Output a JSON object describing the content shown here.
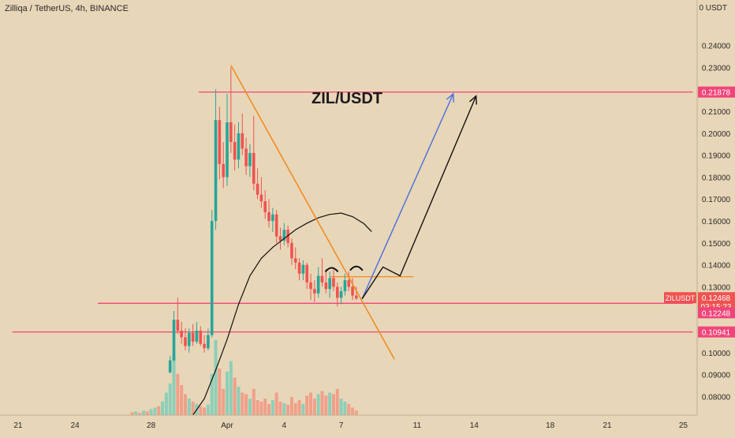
{
  "header": {
    "symbol_title": "Zilliqa / TetherUS, 4h, BINANCE",
    "unit": "0 USDT"
  },
  "annotation": {
    "text": "ZIL/USDT"
  },
  "chart_data": {
    "type": "candlestick",
    "title": "Zilliqa / TetherUS, 4h, BINANCE",
    "pair_label": "ZIL/USDT",
    "y_axis": {
      "unit": "USDT",
      "range": [
        0.0715,
        0.246
      ],
      "ticks": [
        0.08,
        0.09,
        0.1,
        0.11,
        0.12,
        0.13,
        0.14,
        0.15,
        0.16,
        0.17,
        0.18,
        0.19,
        0.2,
        0.21,
        0.22,
        0.23,
        0.24
      ],
      "tick_labels": [
        "0.08000",
        "0.09000",
        "0.10000",
        "0.11000",
        "0.12000",
        "0.13000",
        "0.14000",
        "0.15000",
        "0.16000",
        "0.17000",
        "0.18000",
        "0.19000",
        "0.20000",
        "0.21000",
        "0.22000",
        "0.23000",
        "0.24000"
      ]
    },
    "x_axis": {
      "tick_labels": [
        "21",
        "24",
        "28",
        "Apr",
        "4",
        "7",
        "11",
        "14",
        "18",
        "21",
        "25"
      ],
      "tick_days": [
        -11,
        -8,
        -4,
        0,
        3,
        6,
        10,
        13,
        17,
        20,
        24
      ]
    },
    "price_labels": [
      {
        "text": "0.21878",
        "value": 0.21878
      },
      {
        "text": "0.12468",
        "value": 0.12468,
        "tag": "ZILUSDT",
        "countdown": "03:15:23"
      },
      {
        "text": "0.12248",
        "value": 0.12248
      },
      {
        "text": "0.10941",
        "value": 0.10941
      }
    ],
    "horizontal_lines": [
      {
        "value": 0.21878,
        "from_day": -1.5,
        "to_day": 24.5,
        "color": "#f0457a"
      },
      {
        "value": 0.12248,
        "from_day": -6.8,
        "to_day": 24.5,
        "color": "#f0457a"
      },
      {
        "value": 0.10941,
        "from_day": -11.3,
        "to_day": 24.5,
        "color": "#f0457a"
      },
      {
        "value": 0.1346,
        "from_day": 5.4,
        "to_day": 9.8,
        "color": "#f08a1e"
      }
    ],
    "candles": [
      {
        "day": -3.0,
        "open": 0.091,
        "high": 0.0985,
        "low": 0.0905,
        "close": 0.0965
      },
      {
        "day": -2.8,
        "open": 0.0965,
        "high": 0.119,
        "low": 0.096,
        "close": 0.115
      },
      {
        "day": -2.6,
        "open": 0.115,
        "high": 0.125,
        "low": 0.1085,
        "close": 0.11
      },
      {
        "day": -2.4,
        "open": 0.11,
        "high": 0.114,
        "low": 0.104,
        "close": 0.107
      },
      {
        "day": -2.2,
        "open": 0.107,
        "high": 0.111,
        "low": 0.101,
        "close": 0.103
      },
      {
        "day": -2.0,
        "open": 0.103,
        "high": 0.111,
        "low": 0.1,
        "close": 0.109
      },
      {
        "day": -1.8,
        "open": 0.109,
        "high": 0.113,
        "low": 0.103,
        "close": 0.105
      },
      {
        "day": -1.6,
        "open": 0.105,
        "high": 0.114,
        "low": 0.104,
        "close": 0.11
      },
      {
        "day": -1.4,
        "open": 0.11,
        "high": 0.112,
        "low": 0.103,
        "close": 0.104
      },
      {
        "day": -1.2,
        "open": 0.104,
        "high": 0.108,
        "low": 0.1,
        "close": 0.102
      },
      {
        "day": -1.0,
        "open": 0.102,
        "high": 0.111,
        "low": 0.101,
        "close": 0.108
      },
      {
        "day": -0.8,
        "open": 0.108,
        "high": 0.165,
        "low": 0.107,
        "close": 0.16
      },
      {
        "day": -0.6,
        "open": 0.16,
        "high": 0.22,
        "low": 0.156,
        "close": 0.206
      },
      {
        "day": -0.4,
        "open": 0.206,
        "high": 0.212,
        "low": 0.179,
        "close": 0.186
      },
      {
        "day": -0.2,
        "open": 0.186,
        "high": 0.196,
        "low": 0.175,
        "close": 0.18
      },
      {
        "day": 0.0,
        "open": 0.18,
        "high": 0.218,
        "low": 0.176,
        "close": 0.205
      },
      {
        "day": 0.2,
        "open": 0.205,
        "high": 0.23,
        "low": 0.191,
        "close": 0.196
      },
      {
        "day": 0.4,
        "open": 0.196,
        "high": 0.204,
        "low": 0.183,
        "close": 0.188
      },
      {
        "day": 0.6,
        "open": 0.188,
        "high": 0.205,
        "low": 0.184,
        "close": 0.2
      },
      {
        "day": 0.8,
        "open": 0.2,
        "high": 0.209,
        "low": 0.19,
        "close": 0.193
      },
      {
        "day": 1.0,
        "open": 0.193,
        "high": 0.198,
        "low": 0.181,
        "close": 0.185
      },
      {
        "day": 1.2,
        "open": 0.185,
        "high": 0.195,
        "low": 0.18,
        "close": 0.191
      },
      {
        "day": 1.4,
        "open": 0.191,
        "high": 0.208,
        "low": 0.174,
        "close": 0.177
      },
      {
        "day": 1.6,
        "open": 0.177,
        "high": 0.184,
        "low": 0.17,
        "close": 0.172
      },
      {
        "day": 1.8,
        "open": 0.172,
        "high": 0.18,
        "low": 0.166,
        "close": 0.169
      },
      {
        "day": 2.0,
        "open": 0.169,
        "high": 0.174,
        "low": 0.161,
        "close": 0.164
      },
      {
        "day": 2.2,
        "open": 0.164,
        "high": 0.17,
        "low": 0.157,
        "close": 0.16
      },
      {
        "day": 2.4,
        "open": 0.16,
        "high": 0.166,
        "low": 0.155,
        "close": 0.163
      },
      {
        "day": 2.6,
        "open": 0.163,
        "high": 0.165,
        "low": 0.15,
        "close": 0.153
      },
      {
        "day": 2.8,
        "open": 0.153,
        "high": 0.157,
        "low": 0.147,
        "close": 0.151
      },
      {
        "day": 3.0,
        "open": 0.151,
        "high": 0.159,
        "low": 0.149,
        "close": 0.156
      },
      {
        "day": 3.2,
        "open": 0.156,
        "high": 0.158,
        "low": 0.148,
        "close": 0.15
      },
      {
        "day": 3.4,
        "open": 0.15,
        "high": 0.152,
        "low": 0.14,
        "close": 0.143
      },
      {
        "day": 3.6,
        "open": 0.143,
        "high": 0.148,
        "low": 0.138,
        "close": 0.141
      },
      {
        "day": 3.8,
        "open": 0.141,
        "high": 0.143,
        "low": 0.133,
        "close": 0.136
      },
      {
        "day": 4.0,
        "open": 0.136,
        "high": 0.142,
        "low": 0.133,
        "close": 0.14
      },
      {
        "day": 4.2,
        "open": 0.14,
        "high": 0.141,
        "low": 0.129,
        "close": 0.132
      },
      {
        "day": 4.4,
        "open": 0.132,
        "high": 0.136,
        "low": 0.124,
        "close": 0.129
      },
      {
        "day": 4.6,
        "open": 0.129,
        "high": 0.133,
        "low": 0.123,
        "close": 0.127
      },
      {
        "day": 4.8,
        "open": 0.127,
        "high": 0.139,
        "low": 0.125,
        "close": 0.135
      },
      {
        "day": 5.0,
        "open": 0.135,
        "high": 0.143,
        "low": 0.13,
        "close": 0.132
      },
      {
        "day": 5.2,
        "open": 0.132,
        "high": 0.138,
        "low": 0.127,
        "close": 0.129
      },
      {
        "day": 5.4,
        "open": 0.129,
        "high": 0.137,
        "low": 0.125,
        "close": 0.134
      },
      {
        "day": 5.6,
        "open": 0.134,
        "high": 0.138,
        "low": 0.128,
        "close": 0.13
      },
      {
        "day": 5.8,
        "open": 0.13,
        "high": 0.132,
        "low": 0.121,
        "close": 0.125
      },
      {
        "day": 6.0,
        "open": 0.125,
        "high": 0.13,
        "low": 0.122,
        "close": 0.128
      },
      {
        "day": 6.2,
        "open": 0.128,
        "high": 0.136,
        "low": 0.126,
        "close": 0.133
      },
      {
        "day": 6.4,
        "open": 0.133,
        "high": 0.137,
        "low": 0.128,
        "close": 0.13
      },
      {
        "day": 6.6,
        "open": 0.13,
        "high": 0.134,
        "low": 0.124,
        "close": 0.126
      },
      {
        "day": 6.8,
        "open": 0.126,
        "high": 0.13,
        "low": 0.124,
        "close": 0.1247
      }
    ],
    "volume_bars": [
      {
        "day": -5.0,
        "value": 0.04,
        "dir": "down"
      },
      {
        "day": -4.8,
        "value": 0.05,
        "dir": "up"
      },
      {
        "day": -4.6,
        "value": 0.03,
        "dir": "down"
      },
      {
        "day": -4.4,
        "value": 0.06,
        "dir": "up"
      },
      {
        "day": -4.2,
        "value": 0.05,
        "dir": "down"
      },
      {
        "day": -4.0,
        "value": 0.08,
        "dir": "up"
      },
      {
        "day": -3.8,
        "value": 0.1,
        "dir": "up"
      },
      {
        "day": -3.6,
        "value": 0.12,
        "dir": "down"
      },
      {
        "day": -3.4,
        "value": 0.18,
        "dir": "up"
      },
      {
        "day": -3.2,
        "value": 0.3,
        "dir": "up"
      },
      {
        "day": -3.0,
        "value": 0.42,
        "dir": "up"
      },
      {
        "day": -2.8,
        "value": 0.78,
        "dir": "up"
      },
      {
        "day": -2.6,
        "value": 0.55,
        "dir": "down"
      },
      {
        "day": -2.4,
        "value": 0.4,
        "dir": "down"
      },
      {
        "day": -2.2,
        "value": 0.28,
        "dir": "down"
      },
      {
        "day": -2.0,
        "value": 0.22,
        "dir": "up"
      },
      {
        "day": -1.8,
        "value": 0.18,
        "dir": "down"
      },
      {
        "day": -1.6,
        "value": 0.15,
        "dir": "up"
      },
      {
        "day": -1.4,
        "value": 0.12,
        "dir": "down"
      },
      {
        "day": -1.2,
        "value": 0.1,
        "dir": "down"
      },
      {
        "day": -1.0,
        "value": 0.14,
        "dir": "up"
      },
      {
        "day": -0.8,
        "value": 0.55,
        "dir": "up"
      },
      {
        "day": -0.6,
        "value": 1.0,
        "dir": "up"
      },
      {
        "day": -0.4,
        "value": 0.62,
        "dir": "down"
      },
      {
        "day": -0.2,
        "value": 0.35,
        "dir": "down"
      },
      {
        "day": 0.0,
        "value": 0.58,
        "dir": "up"
      },
      {
        "day": 0.2,
        "value": 0.72,
        "dir": "up"
      },
      {
        "day": 0.4,
        "value": 0.5,
        "dir": "down"
      },
      {
        "day": 0.6,
        "value": 0.38,
        "dir": "up"
      },
      {
        "day": 0.8,
        "value": 0.3,
        "dir": "down"
      },
      {
        "day": 1.0,
        "value": 0.28,
        "dir": "down"
      },
      {
        "day": 1.2,
        "value": 0.22,
        "dir": "up"
      },
      {
        "day": 1.4,
        "value": 0.35,
        "dir": "down"
      },
      {
        "day": 1.6,
        "value": 0.2,
        "dir": "down"
      },
      {
        "day": 1.8,
        "value": 0.18,
        "dir": "down"
      },
      {
        "day": 2.0,
        "value": 0.22,
        "dir": "down"
      },
      {
        "day": 2.2,
        "value": 0.15,
        "dir": "down"
      },
      {
        "day": 2.4,
        "value": 0.2,
        "dir": "up"
      },
      {
        "day": 2.6,
        "value": 0.3,
        "dir": "down"
      },
      {
        "day": 2.8,
        "value": 0.18,
        "dir": "down"
      },
      {
        "day": 3.0,
        "value": 0.16,
        "dir": "up"
      },
      {
        "day": 3.2,
        "value": 0.14,
        "dir": "down"
      },
      {
        "day": 3.4,
        "value": 0.24,
        "dir": "down"
      },
      {
        "day": 3.6,
        "value": 0.16,
        "dir": "down"
      },
      {
        "day": 3.8,
        "value": 0.2,
        "dir": "down"
      },
      {
        "day": 4.0,
        "value": 0.15,
        "dir": "up"
      },
      {
        "day": 4.2,
        "value": 0.26,
        "dir": "down"
      },
      {
        "day": 4.4,
        "value": 0.3,
        "dir": "down"
      },
      {
        "day": 4.6,
        "value": 0.22,
        "dir": "down"
      },
      {
        "day": 4.8,
        "value": 0.28,
        "dir": "up"
      },
      {
        "day": 5.0,
        "value": 0.32,
        "dir": "down"
      },
      {
        "day": 5.2,
        "value": 0.26,
        "dir": "down"
      },
      {
        "day": 5.4,
        "value": 0.3,
        "dir": "up"
      },
      {
        "day": 5.6,
        "value": 0.28,
        "dir": "down"
      },
      {
        "day": 5.8,
        "value": 0.35,
        "dir": "down"
      },
      {
        "day": 6.0,
        "value": 0.22,
        "dir": "up"
      },
      {
        "day": 6.2,
        "value": 0.18,
        "dir": "up"
      },
      {
        "day": 6.4,
        "value": 0.15,
        "dir": "down"
      },
      {
        "day": 6.6,
        "value": 0.1,
        "dir": "down"
      },
      {
        "day": 6.8,
        "value": 0.06,
        "dir": "down"
      }
    ],
    "moving_average": {
      "color": "#111111",
      "points": [
        [
          -1.8,
          0.0715
        ],
        [
          -1.2,
          0.079
        ],
        [
          -0.6,
          0.092
        ],
        [
          0.0,
          0.106
        ],
        [
          0.6,
          0.122
        ],
        [
          1.2,
          0.135
        ],
        [
          1.8,
          0.143
        ],
        [
          2.4,
          0.148
        ],
        [
          3.0,
          0.152
        ],
        [
          3.6,
          0.156
        ],
        [
          4.2,
          0.159
        ],
        [
          4.8,
          0.1615
        ],
        [
          5.4,
          0.163
        ],
        [
          6.0,
          0.1636
        ],
        [
          6.6,
          0.162
        ],
        [
          7.2,
          0.1588
        ],
        [
          7.6,
          0.1552
        ]
      ]
    },
    "trendlines": [
      {
        "kind": "descending-resistance",
        "color": "#f08a1e",
        "from": [
          0.2,
          0.231
        ],
        "to": [
          8.8,
          0.097
        ]
      }
    ],
    "projection_paths": [
      {
        "color": "#4a6ee0",
        "points": [
          [
            7.1,
            0.1245
          ],
          [
            11.9,
            0.218
          ]
        ],
        "arrow": true
      },
      {
        "color": "#111111",
        "points": [
          [
            7.1,
            0.1245
          ],
          [
            8.2,
            0.139
          ],
          [
            9.1,
            0.135
          ],
          [
            13.1,
            0.217
          ]
        ],
        "arrow": true
      }
    ],
    "pattern_arcs": [
      {
        "center_day": 5.5,
        "value": 0.1383
      },
      {
        "center_day": 6.8,
        "value": 0.1389
      }
    ],
    "colors": {
      "up": "#26a69a",
      "down": "#ef5350",
      "level": "#f0457a",
      "trend": "#f08a1e"
    },
    "grid": false
  }
}
